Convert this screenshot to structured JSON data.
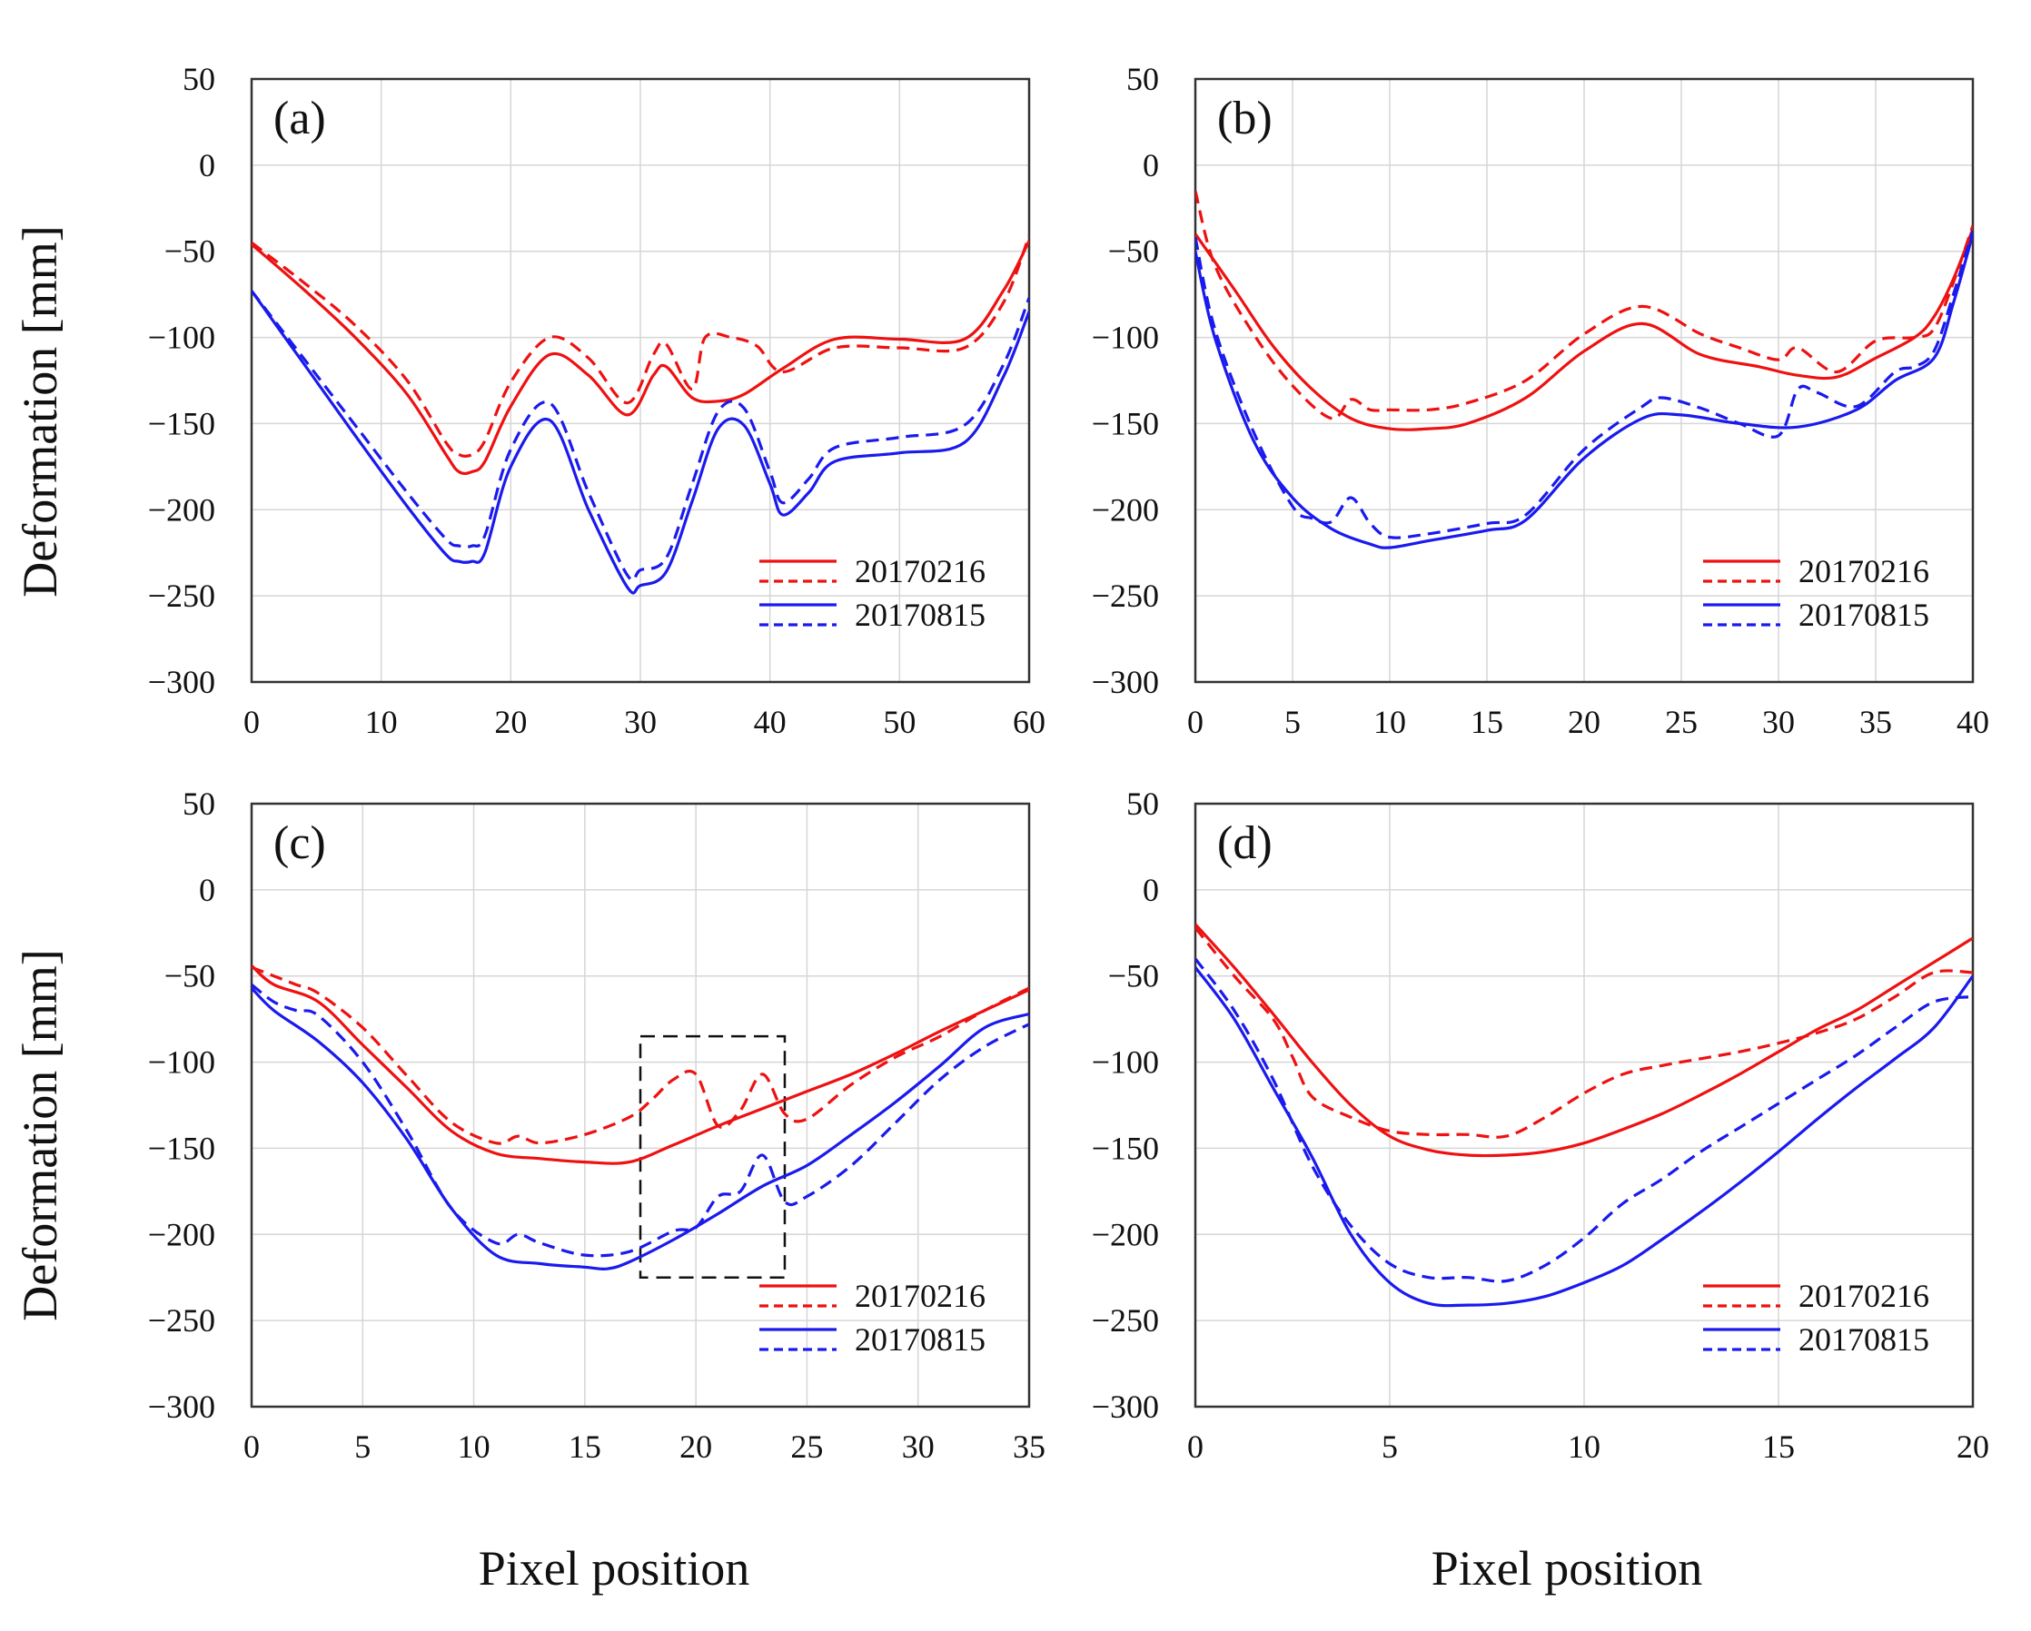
{
  "figure": {
    "ylabel": "Deformation [mm]",
    "xlabel": "Pixel position",
    "colors": {
      "red": "#ee1111",
      "blue": "#1a1aee"
    }
  },
  "chart_data": [
    {
      "type": "line",
      "label": "(a)",
      "xlim": [
        0,
        60
      ],
      "ylim": [
        -300,
        50
      ],
      "xticks": [
        0,
        10,
        20,
        30,
        40,
        50,
        60
      ],
      "yticks": [
        50,
        0,
        -50,
        -100,
        -150,
        -200,
        -250,
        -300
      ],
      "grid": true,
      "legend": [
        "20170216",
        "20170815"
      ],
      "series": [
        {
          "name": "20170216",
          "style": "solid",
          "color": "red",
          "x": [
            0,
            4,
            8,
            12,
            15,
            16,
            17,
            18,
            20,
            23,
            26,
            29,
            31,
            32,
            34,
            36,
            38,
            41,
            45,
            50,
            55,
            58,
            60
          ],
          "y": [
            -46,
            -72,
            -100,
            -133,
            -168,
            -178,
            -178,
            -172,
            -140,
            -110,
            -122,
            -145,
            -122,
            -117,
            -135,
            -137,
            -133,
            -118,
            -101,
            -101,
            -101,
            -73,
            -44
          ]
        },
        {
          "name": "20170216",
          "style": "dashed",
          "color": "red",
          "x": [
            0,
            4,
            8,
            12,
            15,
            16,
            17,
            18,
            20,
            23,
            26,
            29,
            31,
            32,
            34,
            35,
            37,
            39,
            41,
            45,
            50,
            55,
            58,
            60
          ],
          "y": [
            -45,
            -68,
            -93,
            -125,
            -161,
            -168,
            -168,
            -160,
            -126,
            -100,
            -112,
            -138,
            -110,
            -104,
            -130,
            -100,
            -100,
            -105,
            -120,
            -106,
            -106,
            -106,
            -80,
            -41
          ]
        },
        {
          "name": "20170815",
          "style": "solid",
          "color": "blue",
          "x": [
            0,
            4,
            8,
            12,
            15,
            16,
            17,
            18,
            20,
            23,
            26,
            29,
            30,
            32,
            34,
            36,
            38,
            40,
            41,
            43,
            45,
            50,
            55,
            58,
            60
          ],
          "y": [
            -73,
            -115,
            -157,
            -198,
            -226,
            -230,
            -230,
            -225,
            -175,
            -148,
            -200,
            -245,
            -244,
            -236,
            -195,
            -153,
            -151,
            -185,
            -203,
            -190,
            -172,
            -167,
            -161,
            -123,
            -85
          ]
        },
        {
          "name": "20170815",
          "style": "dashed",
          "color": "blue",
          "x": [
            0,
            4,
            8,
            12,
            15,
            16,
            17,
            18,
            20,
            23,
            26,
            29,
            30,
            32,
            34,
            36,
            38,
            40,
            41,
            43,
            45,
            50,
            55,
            58,
            60
          ],
          "y": [
            -73,
            -112,
            -151,
            -190,
            -217,
            -221,
            -221,
            -215,
            -165,
            -138,
            -190,
            -238,
            -235,
            -228,
            -185,
            -143,
            -141,
            -178,
            -196,
            -182,
            -164,
            -158,
            -151,
            -116,
            -77
          ]
        }
      ]
    },
    {
      "type": "line",
      "label": "(b)",
      "xlim": [
        0,
        40
      ],
      "ylim": [
        -300,
        50
      ],
      "xticks": [
        0,
        5,
        10,
        15,
        20,
        25,
        30,
        35,
        40
      ],
      "yticks": [
        50,
        0,
        -50,
        -100,
        -150,
        -200,
        -250,
        -300
      ],
      "grid": true,
      "legend": [
        "20170216",
        "20170815"
      ],
      "series": [
        {
          "name": "20170216",
          "style": "solid",
          "color": "red",
          "x": [
            0,
            2,
            4,
            6,
            8,
            10,
            12,
            14,
            17,
            20,
            23,
            26,
            29,
            31,
            33,
            35,
            37,
            38,
            39,
            40
          ],
          "y": [
            -40,
            -72,
            -105,
            -130,
            -147,
            -153,
            -153,
            -150,
            -135,
            -108,
            -92,
            -110,
            -117,
            -122,
            -123,
            -112,
            -100,
            -88,
            -66,
            -37
          ]
        },
        {
          "name": "20170216",
          "style": "dashed",
          "color": "red",
          "x": [
            0,
            1,
            3,
            5,
            7,
            8,
            9,
            10,
            12,
            14,
            17,
            20,
            23,
            26,
            28,
            30,
            31,
            33,
            35,
            37,
            38,
            39,
            40
          ],
          "y": [
            -15,
            -58,
            -98,
            -128,
            -147,
            -136,
            -142,
            -142,
            -142,
            -138,
            -125,
            -98,
            -82,
            -98,
            -106,
            -113,
            -106,
            -120,
            -102,
            -100,
            -95,
            -68,
            -35
          ]
        },
        {
          "name": "20170815",
          "style": "solid",
          "color": "blue",
          "x": [
            0,
            1,
            3,
            5,
            7,
            9,
            10,
            12,
            15,
            17,
            20,
            23,
            25,
            28,
            31,
            34,
            36,
            38,
            39,
            40
          ],
          "y": [
            -50,
            -100,
            -160,
            -193,
            -211,
            -220,
            -222,
            -218,
            -212,
            -206,
            -170,
            -147,
            -145,
            -150,
            -152,
            -142,
            -125,
            -112,
            -80,
            -40
          ]
        },
        {
          "name": "20170815",
          "style": "dashed",
          "color": "blue",
          "x": [
            0,
            1,
            3,
            5,
            6,
            7,
            8,
            9,
            10,
            12,
            15,
            17,
            20,
            23,
            24,
            26,
            28,
            30,
            31,
            32,
            34,
            36,
            37,
            38,
            39,
            40
          ],
          "y": [
            -42,
            -95,
            -155,
            -198,
            -205,
            -207,
            -193,
            -208,
            -216,
            -214,
            -208,
            -203,
            -165,
            -140,
            -135,
            -141,
            -150,
            -157,
            -130,
            -132,
            -140,
            -120,
            -117,
            -108,
            -75,
            -38
          ]
        }
      ]
    },
    {
      "type": "line",
      "label": "(c)",
      "xlim": [
        0,
        35
      ],
      "ylim": [
        -300,
        50
      ],
      "xticks": [
        0,
        5,
        10,
        15,
        20,
        25,
        30,
        35
      ],
      "yticks": [
        50,
        0,
        -50,
        -100,
        -150,
        -200,
        -250,
        -300
      ],
      "grid": true,
      "legend": [
        "20170216",
        "20170815"
      ],
      "annotation": {
        "type": "dashed-box",
        "x": [
          17.5,
          24
        ],
        "y": [
          -225,
          -85
        ]
      },
      "series": [
        {
          "name": "20170216",
          "style": "solid",
          "color": "red",
          "x": [
            0,
            1,
            3,
            5,
            7,
            9,
            11,
            13,
            15,
            17,
            19,
            21,
            23,
            25,
            27,
            29,
            31,
            33,
            35
          ],
          "y": [
            -44,
            -55,
            -65,
            -90,
            -115,
            -140,
            -153,
            -156,
            -158,
            -158,
            -148,
            -137,
            -127,
            -117,
            -107,
            -95,
            -82,
            -70,
            -58
          ]
        },
        {
          "name": "20170216",
          "style": "dashed",
          "color": "red",
          "x": [
            0,
            1,
            2,
            3,
            5,
            7,
            9,
            11,
            12,
            13,
            15,
            17,
            18,
            19,
            20,
            21,
            22,
            23,
            24,
            25,
            27,
            29,
            31,
            33,
            35
          ],
          "y": [
            -45,
            -50,
            -55,
            -60,
            -80,
            -108,
            -135,
            -147,
            -143,
            -147,
            -142,
            -132,
            -122,
            -110,
            -107,
            -137,
            -128,
            -107,
            -130,
            -133,
            -113,
            -97,
            -85,
            -70,
            -57
          ]
        },
        {
          "name": "20170815",
          "style": "solid",
          "color": "blue",
          "x": [
            0,
            1,
            3,
            5,
            7,
            9,
            11,
            13,
            15,
            16,
            17,
            19,
            21,
            23,
            25,
            27,
            29,
            31,
            33,
            35
          ],
          "y": [
            -57,
            -70,
            -88,
            -112,
            -145,
            -185,
            -212,
            -217,
            -219,
            -220,
            -216,
            -203,
            -188,
            -172,
            -160,
            -142,
            -123,
            -102,
            -80,
            -72
          ]
        },
        {
          "name": "20170815",
          "style": "dashed",
          "color": "blue",
          "x": [
            0,
            1,
            2,
            3,
            5,
            7,
            9,
            11,
            12,
            13,
            15,
            17,
            19,
            20,
            21,
            22,
            23,
            24,
            25,
            27,
            29,
            31,
            33,
            35
          ],
          "y": [
            -55,
            -65,
            -70,
            -73,
            -100,
            -140,
            -185,
            -205,
            -200,
            -205,
            -212,
            -210,
            -198,
            -196,
            -178,
            -175,
            -154,
            -181,
            -178,
            -160,
            -135,
            -110,
            -91,
            -78
          ]
        }
      ]
    },
    {
      "type": "line",
      "label": "(d)",
      "xlim": [
        0,
        20
      ],
      "ylim": [
        -300,
        50
      ],
      "xticks": [
        0,
        5,
        10,
        15,
        20
      ],
      "yticks": [
        50,
        0,
        -50,
        -100,
        -150,
        -200,
        -250,
        -300
      ],
      "grid": true,
      "legend": [
        "20170216",
        "20170815"
      ],
      "series": [
        {
          "name": "20170216",
          "style": "solid",
          "color": "red",
          "x": [
            0,
            1,
            2,
            3,
            4,
            5,
            6,
            7,
            8,
            9,
            10,
            11,
            12,
            13,
            14,
            15,
            16,
            17,
            18,
            19,
            20
          ],
          "y": [
            -20,
            -45,
            -72,
            -100,
            -125,
            -143,
            -151,
            -154,
            -154,
            -152,
            -147,
            -139,
            -130,
            -119,
            -107,
            -94,
            -81,
            -70,
            -56,
            -42,
            -28
          ]
        },
        {
          "name": "20170216",
          "style": "dashed",
          "color": "red",
          "x": [
            0,
            1,
            2,
            2.5,
            3,
            4,
            5,
            6,
            7,
            8,
            9,
            10,
            11,
            12,
            13,
            14,
            15,
            16,
            17,
            18,
            19,
            20
          ],
          "y": [
            -22,
            -50,
            -75,
            -97,
            -120,
            -132,
            -140,
            -142,
            -142,
            -143,
            -132,
            -118,
            -107,
            -102,
            -98,
            -94,
            -89,
            -83,
            -75,
            -62,
            -48,
            -48
          ]
        },
        {
          "name": "20170815",
          "style": "solid",
          "color": "blue",
          "x": [
            0,
            1,
            2,
            3,
            4,
            5,
            6,
            7,
            8,
            9,
            10,
            11,
            12,
            13,
            14,
            15,
            16,
            17,
            18,
            19,
            20
          ],
          "y": [
            -45,
            -75,
            -115,
            -155,
            -200,
            -228,
            -240,
            -241,
            -240,
            -236,
            -228,
            -218,
            -203,
            -187,
            -170,
            -152,
            -133,
            -115,
            -98,
            -80,
            -50
          ]
        },
        {
          "name": "20170815",
          "style": "dashed",
          "color": "blue",
          "x": [
            0,
            1,
            2,
            3,
            4,
            5,
            6,
            7,
            8,
            9,
            10,
            11,
            12,
            13,
            14,
            15,
            16,
            17,
            18,
            19,
            20
          ],
          "y": [
            -40,
            -70,
            -110,
            -160,
            -195,
            -217,
            -225,
            -225,
            -227,
            -218,
            -202,
            -182,
            -168,
            -152,
            -138,
            -124,
            -110,
            -96,
            -80,
            -65,
            -62
          ]
        }
      ]
    }
  ]
}
